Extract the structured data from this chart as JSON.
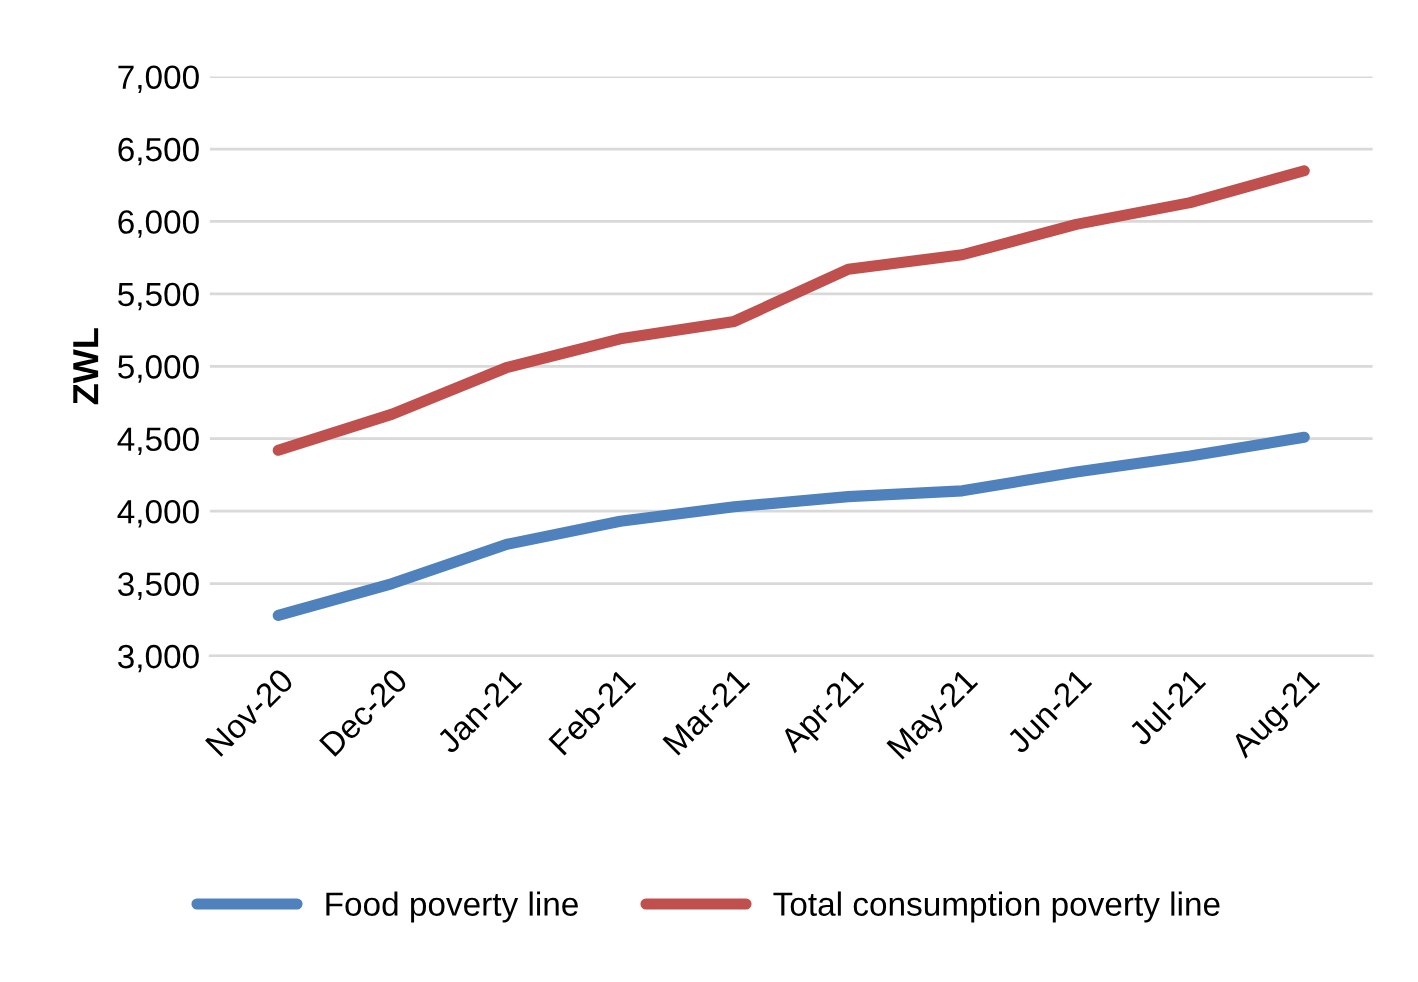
{
  "chart_data": {
    "type": "line",
    "ylabel": "ZWL",
    "categories": [
      "Nov-20",
      "Dec-20",
      "Jan-21",
      "Feb-21",
      "Mar-21",
      "Apr-21",
      "May-21",
      "Jun-21",
      "Jul-21",
      "Aug-21"
    ],
    "series": [
      {
        "name": "Food poverty line",
        "color": "#4f81bd",
        "values": [
          3280,
          3500,
          3770,
          3930,
          4030,
          4100,
          4140,
          4270,
          4380,
          4510
        ]
      },
      {
        "name": "Total consumption poverty line",
        "color": "#c0504d",
        "values": [
          4420,
          4670,
          4990,
          5190,
          5310,
          5670,
          5770,
          5980,
          6130,
          6350
        ]
      }
    ],
    "ylim": [
      3000,
      7000
    ],
    "yticks": [
      {
        "value": 3000,
        "label": "3,000"
      },
      {
        "value": 3500,
        "label": "3,500"
      },
      {
        "value": 4000,
        "label": "4,000"
      },
      {
        "value": 4500,
        "label": "4,500"
      },
      {
        "value": 5000,
        "label": "5,000"
      },
      {
        "value": 5500,
        "label": "5,500"
      },
      {
        "value": 6000,
        "label": "6,000"
      },
      {
        "value": 6500,
        "label": "6,500"
      },
      {
        "value": 7000,
        "label": "7,000"
      }
    ],
    "grid": "y",
    "legend": "bottom",
    "marker": "none",
    "line_style": "solid"
  }
}
